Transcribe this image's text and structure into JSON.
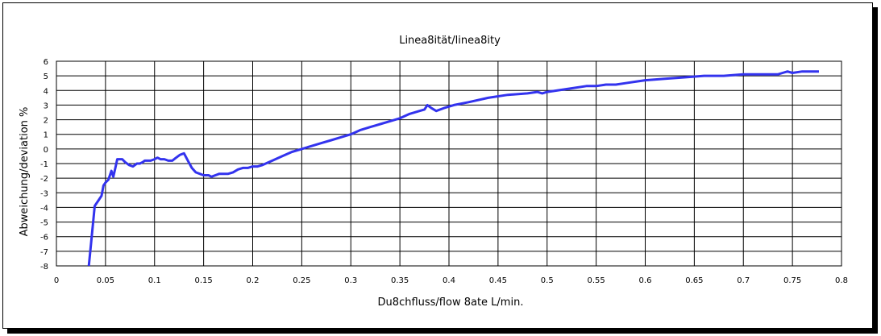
{
  "chart_data": {
    "type": "line",
    "title": "Linea8ität/linea8ity",
    "xlabel": "Du8chfluss/flow 8ate L/min.",
    "ylabel": "Abweichung/deviation %",
    "xlim": [
      0,
      0.8
    ],
    "ylim": [
      -8,
      6
    ],
    "xticks": [
      "0",
      "0.05",
      "0.1",
      "0.15",
      "0.2",
      "0.25",
      "0.3",
      "0.35",
      "0.4",
      "0.45",
      "0.5",
      "0.55",
      "0.6",
      "0.65",
      "0.7",
      "0.75",
      "0.8"
    ],
    "yticks": [
      "6",
      "5",
      "4",
      "3",
      "2",
      "1",
      "0",
      "-1",
      "-2",
      "-3",
      "-4",
      "-5",
      "-6",
      "-7",
      "-8"
    ],
    "grid": true,
    "line_color": "#3333ee",
    "series": [
      {
        "x": [
          0.033,
          0.036,
          0.039,
          0.043,
          0.046,
          0.048,
          0.05,
          0.053,
          0.056,
          0.058,
          0.06,
          0.062,
          0.064,
          0.067,
          0.07,
          0.074,
          0.078,
          0.082,
          0.085,
          0.088,
          0.09,
          0.093,
          0.096,
          0.1,
          0.103,
          0.106,
          0.11,
          0.114,
          0.118,
          0.122,
          0.126,
          0.13,
          0.134,
          0.138,
          0.142,
          0.146,
          0.15,
          0.155,
          0.158,
          0.162,
          0.166,
          0.17,
          0.175,
          0.18,
          0.185,
          0.19,
          0.195,
          0.2,
          0.205,
          0.21,
          0.22,
          0.23,
          0.24,
          0.25,
          0.255,
          0.26,
          0.27,
          0.28,
          0.29,
          0.3,
          0.31,
          0.32,
          0.325,
          0.33,
          0.34,
          0.35,
          0.36,
          0.37,
          0.375,
          0.378,
          0.382,
          0.387,
          0.395,
          0.405,
          0.42,
          0.44,
          0.46,
          0.48,
          0.49,
          0.495,
          0.5,
          0.52,
          0.54,
          0.55,
          0.56,
          0.57,
          0.58,
          0.59,
          0.6,
          0.62,
          0.64,
          0.66,
          0.68,
          0.7,
          0.72,
          0.735,
          0.74,
          0.745,
          0.75,
          0.76,
          0.77,
          0.777
        ],
        "y": [
          -8.0,
          -6.0,
          -3.9,
          -3.5,
          -3.2,
          -2.5,
          -2.3,
          -2.1,
          -1.5,
          -1.9,
          -1.3,
          -0.7,
          -0.7,
          -0.7,
          -0.9,
          -1.1,
          -1.2,
          -1.0,
          -1.0,
          -0.9,
          -0.8,
          -0.8,
          -0.8,
          -0.7,
          -0.6,
          -0.7,
          -0.7,
          -0.8,
          -0.8,
          -0.6,
          -0.4,
          -0.3,
          -0.8,
          -1.3,
          -1.6,
          -1.7,
          -1.8,
          -1.8,
          -1.9,
          -1.8,
          -1.7,
          -1.7,
          -1.7,
          -1.6,
          -1.4,
          -1.3,
          -1.3,
          -1.2,
          -1.2,
          -1.1,
          -0.8,
          -0.5,
          -0.2,
          0.0,
          0.1,
          0.2,
          0.4,
          0.6,
          0.8,
          1.0,
          1.3,
          1.5,
          1.6,
          1.7,
          1.9,
          2.1,
          2.4,
          2.6,
          2.7,
          3.0,
          2.8,
          2.6,
          2.8,
          3.0,
          3.2,
          3.5,
          3.7,
          3.8,
          3.9,
          3.8,
          3.9,
          4.1,
          4.3,
          4.3,
          4.4,
          4.4,
          4.5,
          4.6,
          4.7,
          4.8,
          4.9,
          5.0,
          5.0,
          5.1,
          5.1,
          5.1,
          5.2,
          5.3,
          5.2,
          5.3,
          5.3,
          5.3
        ]
      }
    ]
  }
}
